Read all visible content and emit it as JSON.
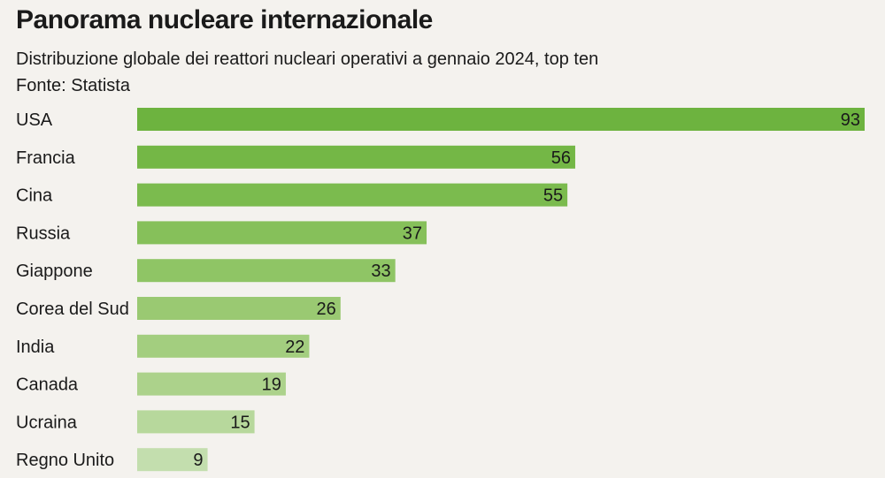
{
  "title": "Panorama nucleare internazionale",
  "subtitle": "Distribuzione globale dei reattori nucleari operativi a gennaio 2024, top ten",
  "source": "Fonte: Statista",
  "chart_data": {
    "type": "bar",
    "orientation": "horizontal",
    "categories": [
      "USA",
      "Francia",
      "Cina",
      "Russia",
      "Giappone",
      "Corea del Sud",
      "India",
      "Canada",
      "Ucraina",
      "Regno Unito"
    ],
    "values": [
      93,
      56,
      55,
      37,
      33,
      26,
      22,
      19,
      15,
      9
    ],
    "bar_colors": [
      "#6db33f",
      "#74b746",
      "#7bbb4e",
      "#86c05a",
      "#8fc565",
      "#9ac972",
      "#a3ce7f",
      "#acd28b",
      "#b7d89c",
      "#c3deae"
    ],
    "xlim": [
      0,
      93
    ],
    "grid": false,
    "legend": "none"
  }
}
